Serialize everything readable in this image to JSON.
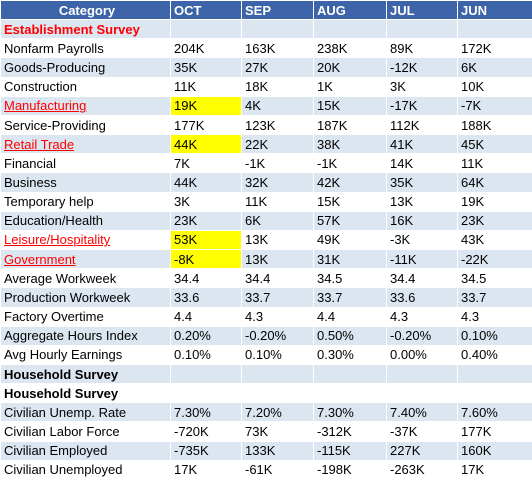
{
  "table": {
    "header": [
      "Category",
      "OCT",
      "SEP",
      "AUG",
      "JUL",
      "JUN"
    ],
    "rows": [
      {
        "category": "Establishment Survey",
        "section": true,
        "color": "#ff0000"
      },
      {
        "category": "Nonfarm Payrolls",
        "values": [
          "204K",
          "163K",
          "238K",
          "89K",
          "172K"
        ]
      },
      {
        "category": "Goods-Producing",
        "values": [
          "35K",
          "27K",
          "20K",
          "-12K",
          "6K"
        ]
      },
      {
        "category": "Construction",
        "values": [
          "11K",
          "18K",
          "1K",
          "3K",
          "10K"
        ]
      },
      {
        "category": "Manufacturing",
        "values": [
          "19K",
          "4K",
          "15K",
          "-17K",
          "-7K"
        ],
        "highlight": true
      },
      {
        "category": "Service-Providing",
        "values": [
          "177K",
          "123K",
          "187K",
          "112K",
          "188K"
        ]
      },
      {
        "category": "Retail Trade",
        "values": [
          "44K",
          "22K",
          "38K",
          "41K",
          "45K"
        ],
        "highlight": true
      },
      {
        "category": "Financial",
        "values": [
          "7K",
          "-1K",
          "-1K",
          "14K",
          "11K"
        ]
      },
      {
        "category": "Business",
        "values": [
          "44K",
          "32K",
          "42K",
          "35K",
          "64K"
        ]
      },
      {
        "category": "Temporary help",
        "values": [
          "3K",
          "11K",
          "15K",
          "13K",
          "19K"
        ]
      },
      {
        "category": "Education/Health",
        "values": [
          "23K",
          "6K",
          "57K",
          "16K",
          "23K"
        ]
      },
      {
        "category": "Leisure/Hospitality",
        "values": [
          "53K",
          "13K",
          "49K",
          "-3K",
          "43K"
        ],
        "highlight": true
      },
      {
        "category": "Government",
        "values": [
          "-8K",
          "13K",
          "31K",
          "-11K",
          "-22K"
        ],
        "highlight": true
      },
      {
        "category": "Average Workweek",
        "values": [
          "34.4",
          "34.4",
          "34.5",
          "34.4",
          "34.5"
        ]
      },
      {
        "category": "Production Workweek",
        "values": [
          "33.6",
          "33.7",
          "33.7",
          "33.6",
          "33.7"
        ]
      },
      {
        "category": "Factory Overtime",
        "values": [
          "4.4",
          "4.3",
          "4.4",
          "4.3",
          "4.3"
        ]
      },
      {
        "category": "Aggregate Hours Index",
        "values": [
          "0.20%",
          "-0.20%",
          "0.50%",
          "-0.20%",
          "0.10%"
        ]
      },
      {
        "category": "Avg Hourly Earnings",
        "values": [
          "0.10%",
          "0.10%",
          "0.30%",
          "0.00%",
          "0.40%"
        ]
      },
      {
        "category": "Household Survey",
        "section": true
      },
      {
        "category": "Household Survey",
        "section": true
      },
      {
        "category": "Civilian Unemp. Rate",
        "values": [
          "7.30%",
          "7.20%",
          "7.30%",
          "7.40%",
          "7.60%"
        ]
      },
      {
        "category": "Civilian Labor Force",
        "values": [
          "-720K",
          "73K",
          "-312K",
          "-37K",
          "177K"
        ]
      },
      {
        "category": "Civilian Employed",
        "values": [
          "-735K",
          "133K",
          "-115K",
          "227K",
          "160K"
        ]
      },
      {
        "category": "Civilian Unemployed",
        "values": [
          "17K",
          "-61K",
          "-198K",
          "-263K",
          "17K"
        ]
      }
    ]
  }
}
